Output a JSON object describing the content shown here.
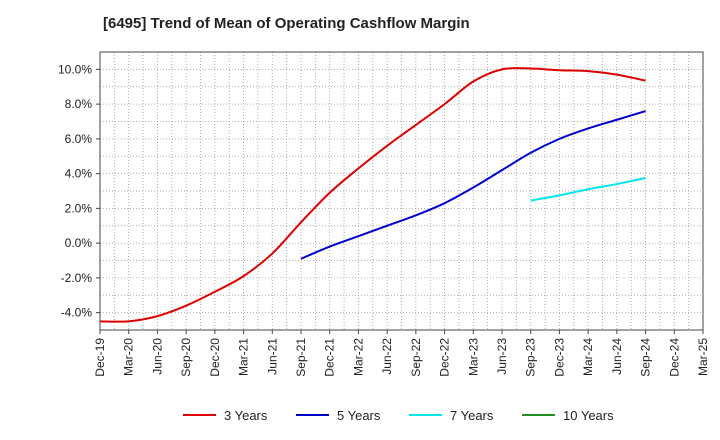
{
  "title": "[6495]  Trend of Mean of Operating Cashflow Margin",
  "chart_data": {
    "type": "line",
    "title": "[6495]  Trend of Mean of Operating Cashflow Margin",
    "x_categories": [
      "Dec-19",
      "Mar-20",
      "Jun-20",
      "Sep-20",
      "Dec-20",
      "Mar-21",
      "Jun-21",
      "Sep-21",
      "Dec-21",
      "Mar-22",
      "Jun-22",
      "Sep-22",
      "Dec-22",
      "Mar-23",
      "Jun-23",
      "Sep-23",
      "Dec-23",
      "Mar-24",
      "Jun-24",
      "Sep-24",
      "Dec-24",
      "Mar-25"
    ],
    "y_ticks": [
      "-4.0%",
      "-2.0%",
      "0.0%",
      "2.0%",
      "4.0%",
      "6.0%",
      "8.0%",
      "10.0%"
    ],
    "ylim": [
      -5.0,
      11.0
    ],
    "grid": true,
    "legend_position": "bottom",
    "series": [
      {
        "name": "3 Years",
        "color": "#dd0000",
        "x": [
          "Dec-19",
          "Mar-20",
          "Jun-20",
          "Sep-20",
          "Dec-20",
          "Mar-21",
          "Jun-21",
          "Sep-21",
          "Dec-21",
          "Mar-22",
          "Jun-22",
          "Sep-22",
          "Dec-22",
          "Mar-23",
          "Jun-23",
          "Sep-23",
          "Dec-23",
          "Mar-24",
          "Jun-24",
          "Sep-24"
        ],
        "values": [
          -4.5,
          -4.5,
          -4.2,
          -3.6,
          -2.8,
          -1.9,
          -0.6,
          1.2,
          2.9,
          4.3,
          5.6,
          6.8,
          8.0,
          9.3,
          10.0,
          10.05,
          9.95,
          9.9,
          9.7,
          9.35
        ]
      },
      {
        "name": "5 Years",
        "color": "#0000cc",
        "x": [
          "Sep-21",
          "Dec-21",
          "Mar-22",
          "Jun-22",
          "Sep-22",
          "Dec-22",
          "Mar-23",
          "Jun-23",
          "Sep-23",
          "Dec-23",
          "Mar-24",
          "Jun-24",
          "Sep-24"
        ],
        "values": [
          -0.9,
          -0.2,
          0.4,
          1.0,
          1.6,
          2.3,
          3.2,
          4.2,
          5.2,
          6.0,
          6.6,
          7.1,
          7.6
        ]
      },
      {
        "name": "7 Years",
        "color": "#00e5ee",
        "x": [
          "Sep-23",
          "Dec-23",
          "Mar-24",
          "Jun-24",
          "Sep-24"
        ],
        "values": [
          2.45,
          2.75,
          3.1,
          3.4,
          3.75
        ]
      },
      {
        "name": "10 Years",
        "color": "#228b22",
        "x": [],
        "values": []
      }
    ]
  }
}
